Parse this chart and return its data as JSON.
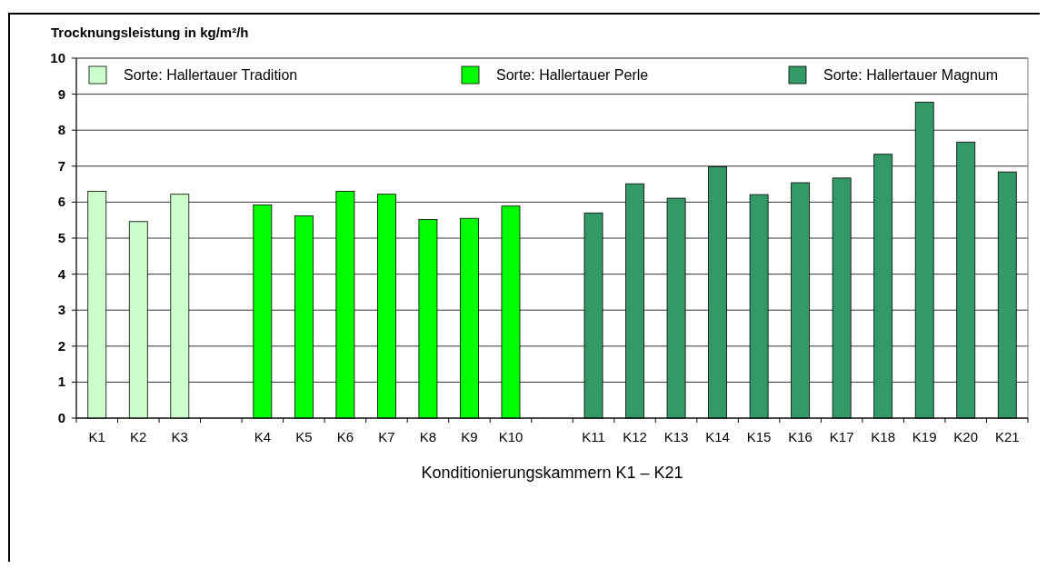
{
  "chart_data": {
    "type": "bar",
    "ylabel": "Trocknungsleistung in kg/m²/h",
    "xlabel": "Konditionierungskammern K1 – K21",
    "categories": [
      "K1",
      "K2",
      "K3",
      null,
      "K4",
      "K5",
      "K6",
      "K7",
      "K8",
      "K9",
      "K10",
      null,
      "K11",
      "K12",
      "K13",
      "K14",
      "K15",
      "K16",
      "K17",
      "K18",
      "K19",
      "K20",
      "K21"
    ],
    "series": [
      {
        "name": "Sorte: Hallertauer Tradition",
        "color": "#ccffcc",
        "values": [
          6.3,
          5.46,
          6.22,
          null,
          null,
          null,
          null,
          null,
          null,
          null,
          null,
          null,
          null,
          null,
          null,
          null,
          null,
          null,
          null,
          null,
          null,
          null,
          null
        ]
      },
      {
        "name": "Sorte: Hallertauer Perle",
        "color": "#00ff00",
        "values": [
          null,
          null,
          null,
          null,
          5.92,
          5.62,
          6.3,
          6.22,
          5.52,
          5.55,
          5.89,
          null,
          null,
          null,
          null,
          null,
          null,
          null,
          null,
          null,
          null,
          null,
          null
        ]
      },
      {
        "name": "Sorte: Hallertauer Magnum",
        "color": "#339966",
        "values": [
          null,
          null,
          null,
          null,
          null,
          null,
          null,
          null,
          null,
          null,
          null,
          null,
          5.7,
          6.51,
          6.11,
          6.98,
          6.21,
          6.54,
          6.67,
          7.33,
          8.78,
          7.67,
          6.84
        ]
      }
    ],
    "ylim": [
      0,
      10
    ],
    "yticks": [
      0,
      1,
      2,
      3,
      4,
      5,
      6,
      7,
      8,
      9,
      10
    ],
    "grid": "y",
    "legend": "top"
  }
}
